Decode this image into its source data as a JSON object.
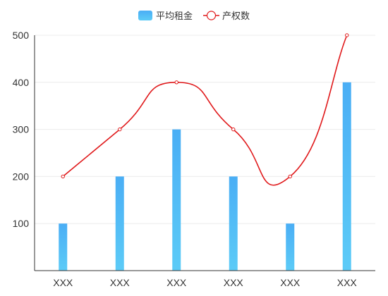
{
  "chart_data": {
    "type": "bar",
    "categories": [
      "XXX",
      "XXX",
      "XXX",
      "XXX",
      "XXX",
      "XXX"
    ],
    "series": [
      {
        "name": "平均租金",
        "type": "bar",
        "values": [
          100,
          200,
          300,
          200,
          100,
          400
        ],
        "color_top": "#4aaef5",
        "color_bottom": "#5ccbf7"
      },
      {
        "name": "产权数",
        "type": "line",
        "smooth": true,
        "values": [
          200,
          300,
          400,
          300,
          200,
          500
        ],
        "color": "#e0191b"
      }
    ],
    "ylim": [
      0,
      500
    ],
    "yticks": [
      100,
      200,
      300,
      400,
      500
    ],
    "grid": true,
    "legend_position": "top-center",
    "title": "",
    "xlabel": "",
    "ylabel": ""
  },
  "colors": {
    "axis": "#333333",
    "grid": "#ececec",
    "point_fill": "#ffffff"
  }
}
